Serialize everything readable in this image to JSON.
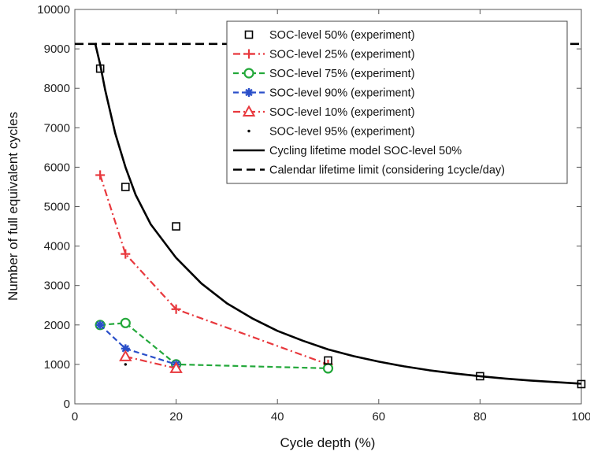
{
  "chart_data": {
    "type": "line",
    "xlabel": "Cycle depth (%)",
    "ylabel": "Number of full equivalent cycles",
    "xlim": [
      0,
      100
    ],
    "ylim": [
      0,
      10000
    ],
    "x_ticks": [
      "0",
      "20",
      "40",
      "60",
      "80",
      "100"
    ],
    "y_ticks": [
      "0",
      "1000",
      "2000",
      "3000",
      "4000",
      "5000",
      "6000",
      "7000",
      "8000",
      "9000",
      "10000"
    ],
    "grid": false,
    "legend_position": "top-right",
    "series": [
      {
        "name": "SOC-level 50% (experiment)",
        "color": "#000000",
        "marker": "square",
        "line": "none",
        "points": [
          [
            5,
            8500
          ],
          [
            10,
            5500
          ],
          [
            20,
            4500
          ],
          [
            50,
            1100
          ],
          [
            80,
            700
          ],
          [
            100,
            500
          ]
        ]
      },
      {
        "name": "SOC-level 25% (experiment)",
        "color": "#e8383d",
        "marker": "plus",
        "line": "dashdot",
        "points": [
          [
            5,
            5800
          ],
          [
            10,
            3800
          ],
          [
            20,
            2400
          ],
          [
            50,
            1000
          ]
        ]
      },
      {
        "name": "SOC-level 75% (experiment)",
        "color": "#23a83a",
        "marker": "circle",
        "line": "dashed",
        "points": [
          [
            5,
            2000
          ],
          [
            10,
            2050
          ],
          [
            20,
            1000
          ],
          [
            50,
            900
          ]
        ]
      },
      {
        "name": "SOC-level 90% (experiment)",
        "color": "#2a4fc9",
        "marker": "asterisk",
        "line": "dashed",
        "points": [
          [
            5,
            2000
          ],
          [
            10,
            1400
          ],
          [
            20,
            1000
          ]
        ]
      },
      {
        "name": "SOC-level 10% (experiment)",
        "color": "#e8383d",
        "marker": "triangle",
        "line": "dashdot",
        "points": [
          [
            10,
            1200
          ],
          [
            20,
            900
          ]
        ]
      },
      {
        "name": "SOC-level 95% (experiment)",
        "color": "#000000",
        "marker": "dot",
        "line": "none",
        "points": [
          [
            10,
            1000
          ]
        ]
      },
      {
        "name": "Cycling lifetime model SOC-level 50%",
        "color": "#000000",
        "marker": "none",
        "line": "solid",
        "points": [
          [
            4,
            9150
          ],
          [
            5,
            8600
          ],
          [
            6,
            7950
          ],
          [
            8,
            6850
          ],
          [
            10,
            6000
          ],
          [
            12,
            5300
          ],
          [
            15,
            4550
          ],
          [
            20,
            3700
          ],
          [
            25,
            3050
          ],
          [
            30,
            2550
          ],
          [
            35,
            2170
          ],
          [
            40,
            1850
          ],
          [
            45,
            1600
          ],
          [
            50,
            1380
          ],
          [
            55,
            1210
          ],
          [
            60,
            1070
          ],
          [
            65,
            950
          ],
          [
            70,
            850
          ],
          [
            75,
            770
          ],
          [
            80,
            700
          ],
          [
            85,
            640
          ],
          [
            90,
            590
          ],
          [
            95,
            550
          ],
          [
            100,
            510
          ]
        ]
      },
      {
        "name": "Calendar lifetime limit (considering 1cycle/day)",
        "color": "#000000",
        "marker": "none",
        "line": "dashed-thick",
        "points": [
          [
            0,
            9125
          ],
          [
            100,
            9125
          ]
        ]
      }
    ]
  }
}
